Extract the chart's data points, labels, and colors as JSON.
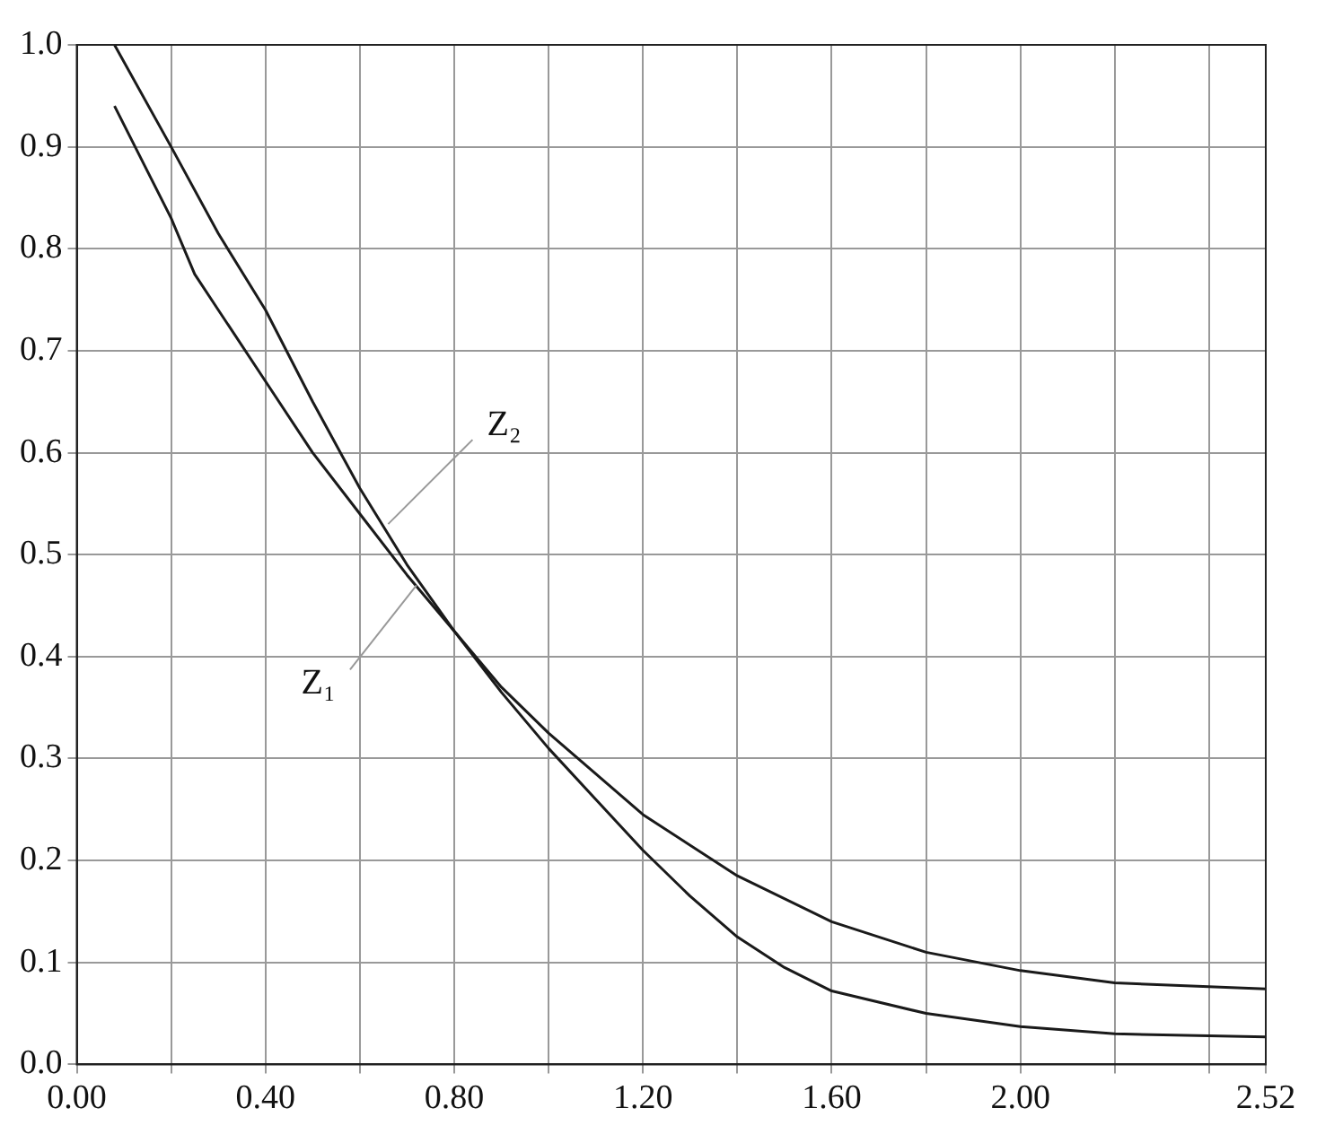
{
  "chart_data": {
    "type": "line",
    "marker": "none",
    "grid": true,
    "legend": false,
    "xlim": [
      0,
      2.52
    ],
    "xticks": [
      {
        "value": 0,
        "label": "0.00"
      },
      {
        "value": 0.2,
        "label": null
      },
      {
        "value": 0.4,
        "label": "0.40"
      },
      {
        "value": 0.6,
        "label": null
      },
      {
        "value": 0.8,
        "label": "0.80"
      },
      {
        "value": 1.0,
        "label": null
      },
      {
        "value": 1.2,
        "label": "1.20"
      },
      {
        "value": 1.4,
        "label": null
      },
      {
        "value": 1.6,
        "label": "1.60"
      },
      {
        "value": 1.8,
        "label": null
      },
      {
        "value": 2.0,
        "label": "2.00"
      },
      {
        "value": 2.2,
        "label": null
      },
      {
        "value": 2.4,
        "label": null
      },
      {
        "value": 2.52,
        "label": "2.52"
      }
    ],
    "ylim": [
      0,
      1
    ],
    "yticks": [
      {
        "value": 0,
        "label": "0.0"
      },
      0.1,
      0.2,
      0.3,
      0.4,
      0.5,
      0.6,
      0.7,
      0.8,
      0.9,
      {
        "value": 1,
        "label": "1.0"
      }
    ],
    "series": [
      {
        "color": "#1a1a1a",
        "x": [
          0.08,
          0.2,
          0.3,
          0.4,
          0.5,
          0.6,
          0.7,
          0.8,
          0.9,
          1.0,
          1.1,
          1.2,
          1.3,
          1.4,
          1.5,
          1.6,
          1.8,
          2.0,
          2.2,
          2.52
        ],
        "values": [
          1.0,
          0.9,
          0.815,
          0.74,
          0.65,
          0.565,
          0.49,
          0.425,
          0.365,
          0.31,
          0.26,
          0.21,
          0.165,
          0.125,
          0.095,
          0.072,
          0.05,
          0.037,
          0.03,
          0.027
        ]
      },
      {
        "color": "#1a1a1a",
        "x": [
          0.08,
          0.2,
          0.25,
          0.3,
          0.4,
          0.5,
          0.6,
          0.7,
          0.8,
          0.9,
          1.0,
          1.2,
          1.4,
          1.6,
          1.8,
          2.0,
          2.2,
          2.52
        ],
        "values": [
          0.94,
          0.83,
          0.775,
          0.74,
          0.67,
          0.6,
          0.54,
          0.48,
          0.425,
          0.37,
          0.325,
          0.245,
          0.185,
          0.14,
          0.11,
          0.092,
          0.08,
          0.074
        ]
      }
    ],
    "annotations": [
      {
        "text": "Z₂",
        "x": 0.66,
        "y": 0.53
      },
      {
        "text": "Z₁",
        "x": 0.72,
        "y": 0.47
      }
    ]
  }
}
